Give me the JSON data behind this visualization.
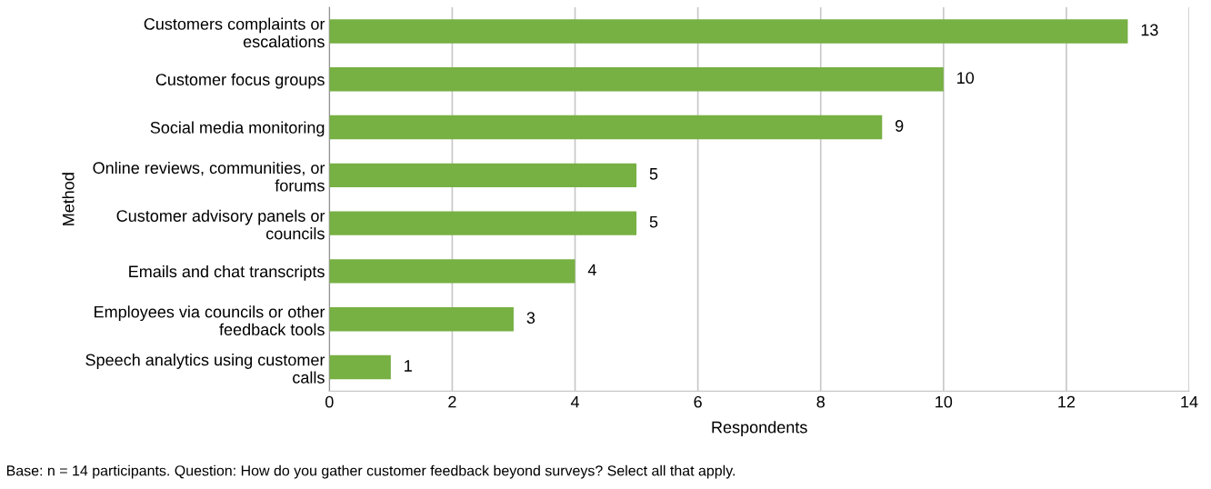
{
  "chart_data": {
    "type": "bar",
    "orientation": "horizontal",
    "categories": [
      "Customers complaints or\nescalations",
      "Customer focus groups",
      "Social media monitoring",
      "Online reviews, communities, or\nforums",
      "Customer advisory panels or\ncouncils",
      "Emails and chat transcripts",
      "Employees via councils or other\nfeedback tools",
      "Speech analytics using customer\ncalls"
    ],
    "values": [
      13,
      10,
      9,
      5,
      5,
      4,
      3,
      1
    ],
    "color": "#77b043",
    "xlim": [
      0,
      14
    ],
    "xticks": [
      0,
      2,
      4,
      6,
      8,
      10,
      12,
      14
    ],
    "xlabel": "Respondents",
    "ylabel": "Method",
    "grid": "x",
    "data_labels": true,
    "legend": false,
    "annotations": [
      "Base: n = 14 participants. Question: How do you gather customer feedback beyond surveys? Select all that apply."
    ]
  }
}
